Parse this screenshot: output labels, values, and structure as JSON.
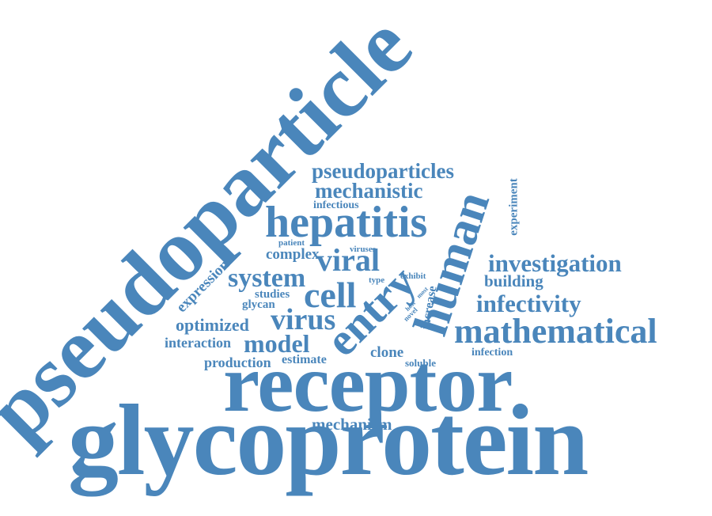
{
  "colors": {
    "word": "#4a86bb",
    "background": "#ffffff"
  },
  "words": {
    "glycoprotein": "glycoprotein",
    "receptor": "receptor",
    "pseudoparticle": "pseudoparticle",
    "human": "human",
    "entry": "entry",
    "hepatitis": "hepatitis",
    "mathematical": "mathematical",
    "cell": "cell",
    "virus": "virus",
    "model": "model",
    "viral": "viral",
    "system": "system",
    "pseudoparticles": "pseudoparticles",
    "mechanistic": "mechanistic",
    "investigation": "investigation",
    "infectivity": "infectivity",
    "optimized": "optimized",
    "mechanism": "mechanism",
    "complex": "complex",
    "building": "building",
    "expression": "expression",
    "interaction": "interaction",
    "production": "production",
    "estimate": "estimate",
    "clone": "clone",
    "soluble": "soluble",
    "infection": "infection",
    "experiment": "experiment",
    "increase": "increase",
    "studies": "studies",
    "glycan": "glycan",
    "infectious": "infectious",
    "patient": "patient",
    "viruses": "viruses",
    "type": "type",
    "exhibit": "exhibit",
    "host": "host",
    "novel": "novel",
    "most": "most"
  }
}
